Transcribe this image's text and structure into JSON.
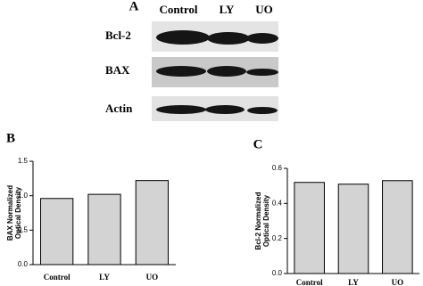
{
  "blot": {
    "panel": "A",
    "lanes": [
      "Control",
      "LY",
      "UO"
    ],
    "rows": [
      "Bcl-2",
      "BAX",
      "Actin"
    ]
  },
  "chart_data": [
    {
      "type": "bar",
      "panel": "B",
      "ylabel": [
        "BAX Normalized",
        "Optical Density"
      ],
      "categories": [
        "Control",
        "LY",
        "UO"
      ],
      "values": [
        0.96,
        1.02,
        1.22
      ],
      "color": "#d3d3d3",
      "ylim": [
        0,
        1.5
      ],
      "yticks": [
        {
          "value": 0,
          "label": "0.0"
        },
        0.5,
        {
          "value": 1,
          "label": "1.0"
        },
        1.5
      ]
    },
    {
      "type": "bar",
      "panel": "C",
      "ylabel": [
        "Bcl-2 Normalized",
        "Optical Density"
      ],
      "categories": [
        "Control",
        "LY",
        "UO"
      ],
      "values": [
        0.52,
        0.51,
        0.53
      ],
      "color": "#d3d3d3",
      "ylim": [
        0,
        0.6
      ],
      "yticks": [
        {
          "value": 0,
          "label": "0.0"
        },
        0.2,
        0.4,
        0.6
      ]
    }
  ]
}
